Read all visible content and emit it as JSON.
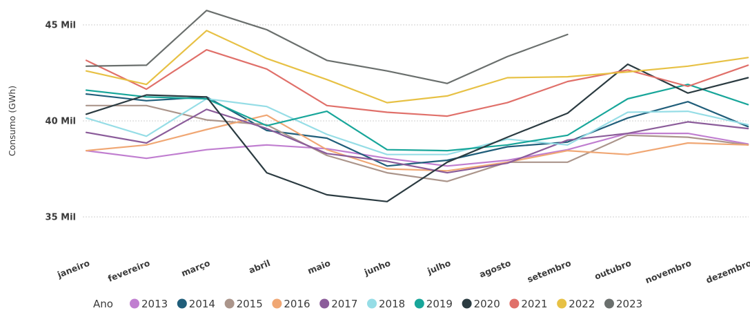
{
  "chart_data": {
    "type": "line",
    "ylabel": "Consumo (GWh)",
    "ylim": [
      34500,
      46000
    ],
    "grid": true,
    "legend_position": "bottom",
    "yticks": [
      {
        "value": 35000,
        "label": "35 Mil"
      },
      {
        "value": 40000,
        "label": "40 Mil"
      },
      {
        "value": 45000,
        "label": "45 Mil"
      }
    ],
    "legend_title": "Ano",
    "categories": [
      "janeiro",
      "fevereiro",
      "março",
      "abril",
      "maio",
      "junho",
      "julho",
      "agosto",
      "setembro",
      "outubro",
      "novembro",
      "dezembro"
    ],
    "series": [
      {
        "name": "2013",
        "color": "#c07ed0",
        "values": [
          38450,
          38050,
          38500,
          38750,
          38550,
          38050,
          37650,
          37950,
          38500,
          39350,
          39350,
          38800
        ]
      },
      {
        "name": "2014",
        "color": "#205e7a",
        "values": [
          41400,
          41050,
          41250,
          39500,
          39100,
          37650,
          37950,
          38650,
          38900,
          40150,
          41000,
          39700
        ]
      },
      {
        "name": "2015",
        "color": "#ab958b",
        "values": [
          40800,
          40800,
          40050,
          39800,
          38200,
          37300,
          36850,
          37850,
          37850,
          39250,
          39150,
          38750
        ]
      },
      {
        "name": "2016",
        "color": "#f0a774",
        "values": [
          38450,
          38750,
          39550,
          40300,
          38500,
          37500,
          37400,
          37850,
          38450,
          38250,
          38850,
          38750
        ]
      },
      {
        "name": "2017",
        "color": "#8b5c9a",
        "values": [
          39400,
          38850,
          40600,
          39600,
          38300,
          37900,
          37300,
          37800,
          39000,
          39350,
          39950,
          39600
        ]
      },
      {
        "name": "2018",
        "color": "#96dde6",
        "values": [
          40150,
          39200,
          41150,
          40750,
          39300,
          38250,
          38250,
          39050,
          38750,
          40450,
          40500,
          39800
        ]
      },
      {
        "name": "2019",
        "color": "#18a69a",
        "values": [
          41600,
          41250,
          41150,
          39750,
          40500,
          38500,
          38450,
          38750,
          39250,
          41150,
          41900,
          40850
        ]
      },
      {
        "name": "2020",
        "color": "#2b3b41",
        "values": [
          40350,
          41350,
          41250,
          37300,
          36150,
          35800,
          37850,
          39150,
          40400,
          42950,
          41450,
          42250
        ]
      },
      {
        "name": "2021",
        "color": "#e0706a",
        "values": [
          43150,
          41650,
          43700,
          42700,
          40800,
          40450,
          40250,
          40950,
          42050,
          42650,
          41800,
          42900
        ]
      },
      {
        "name": "2022",
        "color": "#e7c145",
        "values": [
          42600,
          41900,
          44700,
          43250,
          42150,
          40950,
          41300,
          42250,
          42300,
          42550,
          42850,
          43300
        ]
      },
      {
        "name": "2023",
        "color": "#6a6f6d",
        "values": [
          42850,
          42900,
          45750,
          44750,
          43150,
          42600,
          41950,
          43350,
          44500,
          null,
          null,
          null
        ]
      }
    ]
  }
}
